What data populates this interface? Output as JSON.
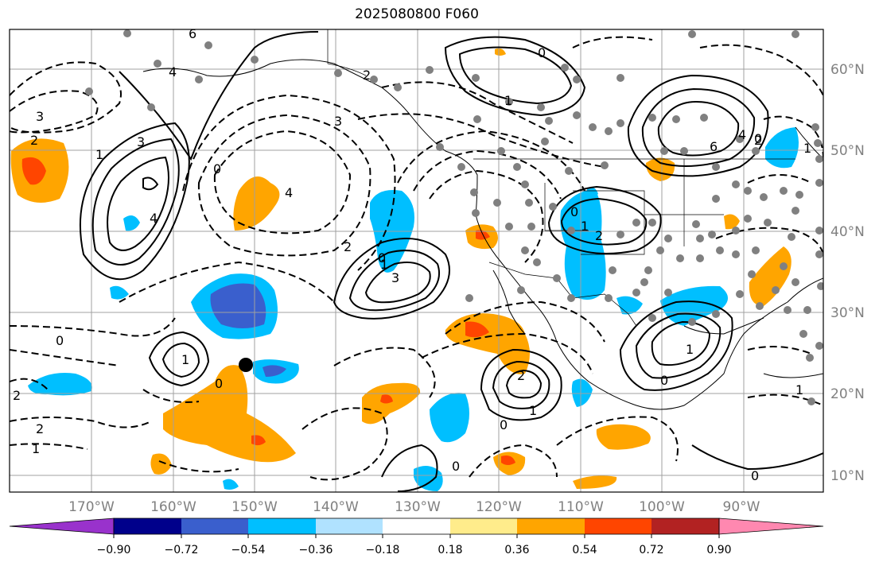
{
  "title": "2025080800 F060",
  "map": {
    "lon_labels": [
      "170°W",
      "160°W",
      "150°W",
      "140°W",
      "130°W",
      "120°W",
      "110°W",
      "100°W",
      "90°W"
    ],
    "lat_labels": [
      "60°N",
      "50°N",
      "40°N",
      "30°N",
      "20°N",
      "10°N"
    ],
    "contour_labels": [
      "6",
      "4",
      "3",
      "2",
      "1",
      "3",
      "4",
      "0",
      "4",
      "3",
      "2",
      "1",
      "0",
      "3",
      "2",
      "1",
      "0",
      "6",
      "4",
      "2",
      "1",
      "0",
      "2",
      "1",
      "0",
      "0",
      "1",
      "2",
      "0",
      "2",
      "1",
      "2",
      "1",
      "0",
      "0",
      "0",
      "1",
      "1",
      "0"
    ],
    "marker_label": ""
  },
  "colorbar": {
    "ticks": [
      "−0.90",
      "−0.72",
      "−0.54",
      "−0.36",
      "−0.18",
      "0.18",
      "0.36",
      "0.54",
      "0.72",
      "0.90"
    ],
    "colors": [
      "#9932cc",
      "#00008b",
      "#3a5fcd",
      "#00bfff",
      "#b0e2ff",
      "#ffffff",
      "#ffec8b",
      "#ffa500",
      "#ff4500",
      "#b22222",
      "#ff88b0"
    ]
  },
  "colors": {
    "grid": "#a0a0a0",
    "positive_shade": "#ffa500",
    "strong_positive": "#ff4500",
    "negative_shade": "#00bfff",
    "strong_negative": "#3a5fcd",
    "dots": "#808080"
  }
}
